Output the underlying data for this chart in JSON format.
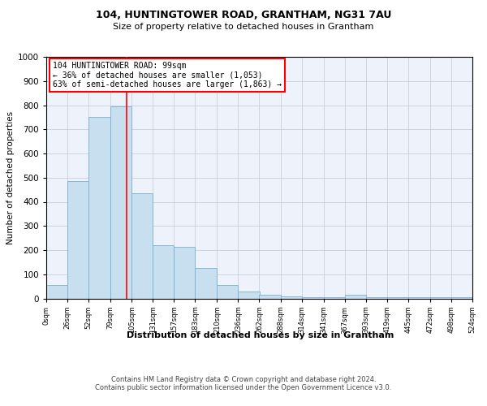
{
  "title1": "104, HUNTINGTOWER ROAD, GRANTHAM, NG31 7AU",
  "title2": "Size of property relative to detached houses in Grantham",
  "xlabel": "Distribution of detached houses by size in Grantham",
  "ylabel": "Number of detached properties",
  "annotation_line1": "104 HUNTINGTOWER ROAD: 99sqm",
  "annotation_line2": "← 36% of detached houses are smaller (1,053)",
  "annotation_line3": "63% of semi-detached houses are larger (1,863) →",
  "property_size_sqm": 99,
  "bin_edges": [
    0,
    26,
    52,
    79,
    105,
    131,
    157,
    183,
    210,
    236,
    262,
    288,
    314,
    341,
    367,
    393,
    419,
    445,
    472,
    498,
    524
  ],
  "bar_heights": [
    55,
    485,
    750,
    795,
    435,
    220,
    215,
    125,
    55,
    30,
    15,
    10,
    5,
    5,
    15,
    5,
    5,
    5,
    5,
    5
  ],
  "bar_color": "#c8dff0",
  "bar_edge_color": "#7aafd4",
  "vline_color": "red",
  "vline_x": 99,
  "ylim": [
    0,
    1000
  ],
  "yticks": [
    0,
    100,
    200,
    300,
    400,
    500,
    600,
    700,
    800,
    900,
    1000
  ],
  "xtick_labels": [
    "0sqm",
    "26sqm",
    "52sqm",
    "79sqm",
    "105sqm",
    "131sqm",
    "157sqm",
    "183sqm",
    "210sqm",
    "236sqm",
    "262sqm",
    "288sqm",
    "314sqm",
    "341sqm",
    "367sqm",
    "393sqm",
    "419sqm",
    "445sqm",
    "472sqm",
    "498sqm",
    "524sqm"
  ],
  "background_color": "#eef2fb",
  "grid_color": "#c0c8d8",
  "footer1": "Contains HM Land Registry data © Crown copyright and database right 2024.",
  "footer2": "Contains public sector information licensed under the Open Government Licence v3.0.",
  "title1_fontsize": 9,
  "title2_fontsize": 8,
  "ylabel_fontsize": 7.5,
  "xlabel_fontsize": 8,
  "ytick_fontsize": 7.5,
  "xtick_fontsize": 6,
  "annotation_fontsize": 7,
  "footer_fontsize": 6,
  "footer_color": "#444444"
}
